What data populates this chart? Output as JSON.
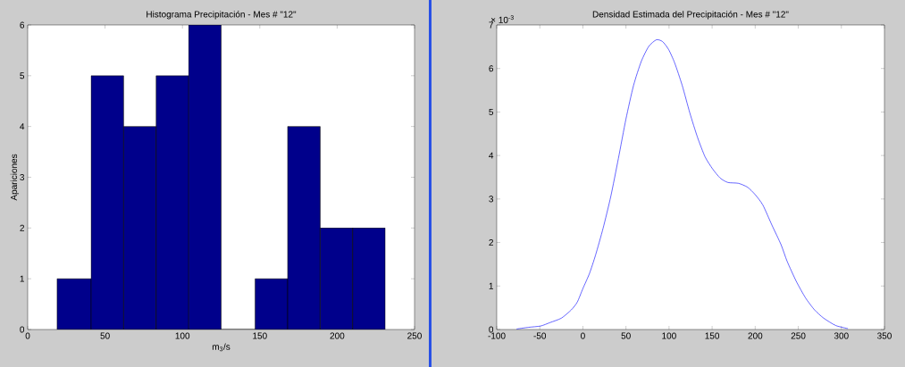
{
  "chart_data": [
    {
      "type": "histogram",
      "title": "Histograma Precipitación - Mes # \"12\"",
      "xlabel": "m$_{3}$/s",
      "ylabel": "Apariciones",
      "bins": [
        19,
        41,
        62,
        83,
        104,
        125,
        147,
        168,
        189,
        210,
        231
      ],
      "values": [
        1,
        5,
        4,
        5,
        6,
        0,
        1,
        4,
        2,
        2
      ],
      "color": "#00008b",
      "xlim": [
        0,
        250
      ],
      "xticks": [
        0,
        50,
        100,
        150,
        200,
        250
      ],
      "ylim": [
        0,
        6
      ],
      "yticks": [
        0,
        1,
        2,
        3,
        4,
        5,
        6
      ]
    },
    {
      "type": "line",
      "title": "Densidad Estimada del Precipitación - Mes # \"12\"",
      "annotations": [
        "× 10$^{-3}$"
      ],
      "x": [
        -77,
        -63,
        -49,
        -38,
        -25,
        -13.5,
        -6.5,
        0,
        7.7,
        14.7,
        23.5,
        32.4,
        41.2,
        50,
        58.8,
        67.7,
        76.5,
        85.3,
        92.4,
        99.4,
        106.5,
        115.3,
        124.1,
        133,
        141.8,
        150.6,
        159.4,
        168.3,
        180.6,
        191.2,
        200,
        208.9,
        219.4,
        230,
        237,
        247.6,
        258.3,
        268.9,
        279.5,
        293.6,
        307.7
      ],
      "values": [
        0.01,
        0.05,
        0.08,
        0.16,
        0.26,
        0.45,
        0.63,
        0.94,
        1.29,
        1.71,
        2.33,
        3.06,
        3.93,
        4.84,
        5.61,
        6.16,
        6.51,
        6.66,
        6.62,
        6.44,
        6.13,
        5.61,
        4.98,
        4.42,
        3.97,
        3.69,
        3.48,
        3.38,
        3.36,
        3.27,
        3.1,
        2.86,
        2.4,
        1.95,
        1.57,
        1.11,
        0.73,
        0.45,
        0.26,
        0.09,
        0.02
      ],
      "color": "#0000ff",
      "xlim": [
        -100,
        350
      ],
      "xticks": [
        -100,
        -50,
        0,
        50,
        100,
        150,
        200,
        250,
        300,
        350
      ],
      "ylim": [
        0,
        7
      ],
      "yticks": [
        0,
        1,
        2,
        3,
        4,
        5,
        6,
        7
      ]
    }
  ]
}
